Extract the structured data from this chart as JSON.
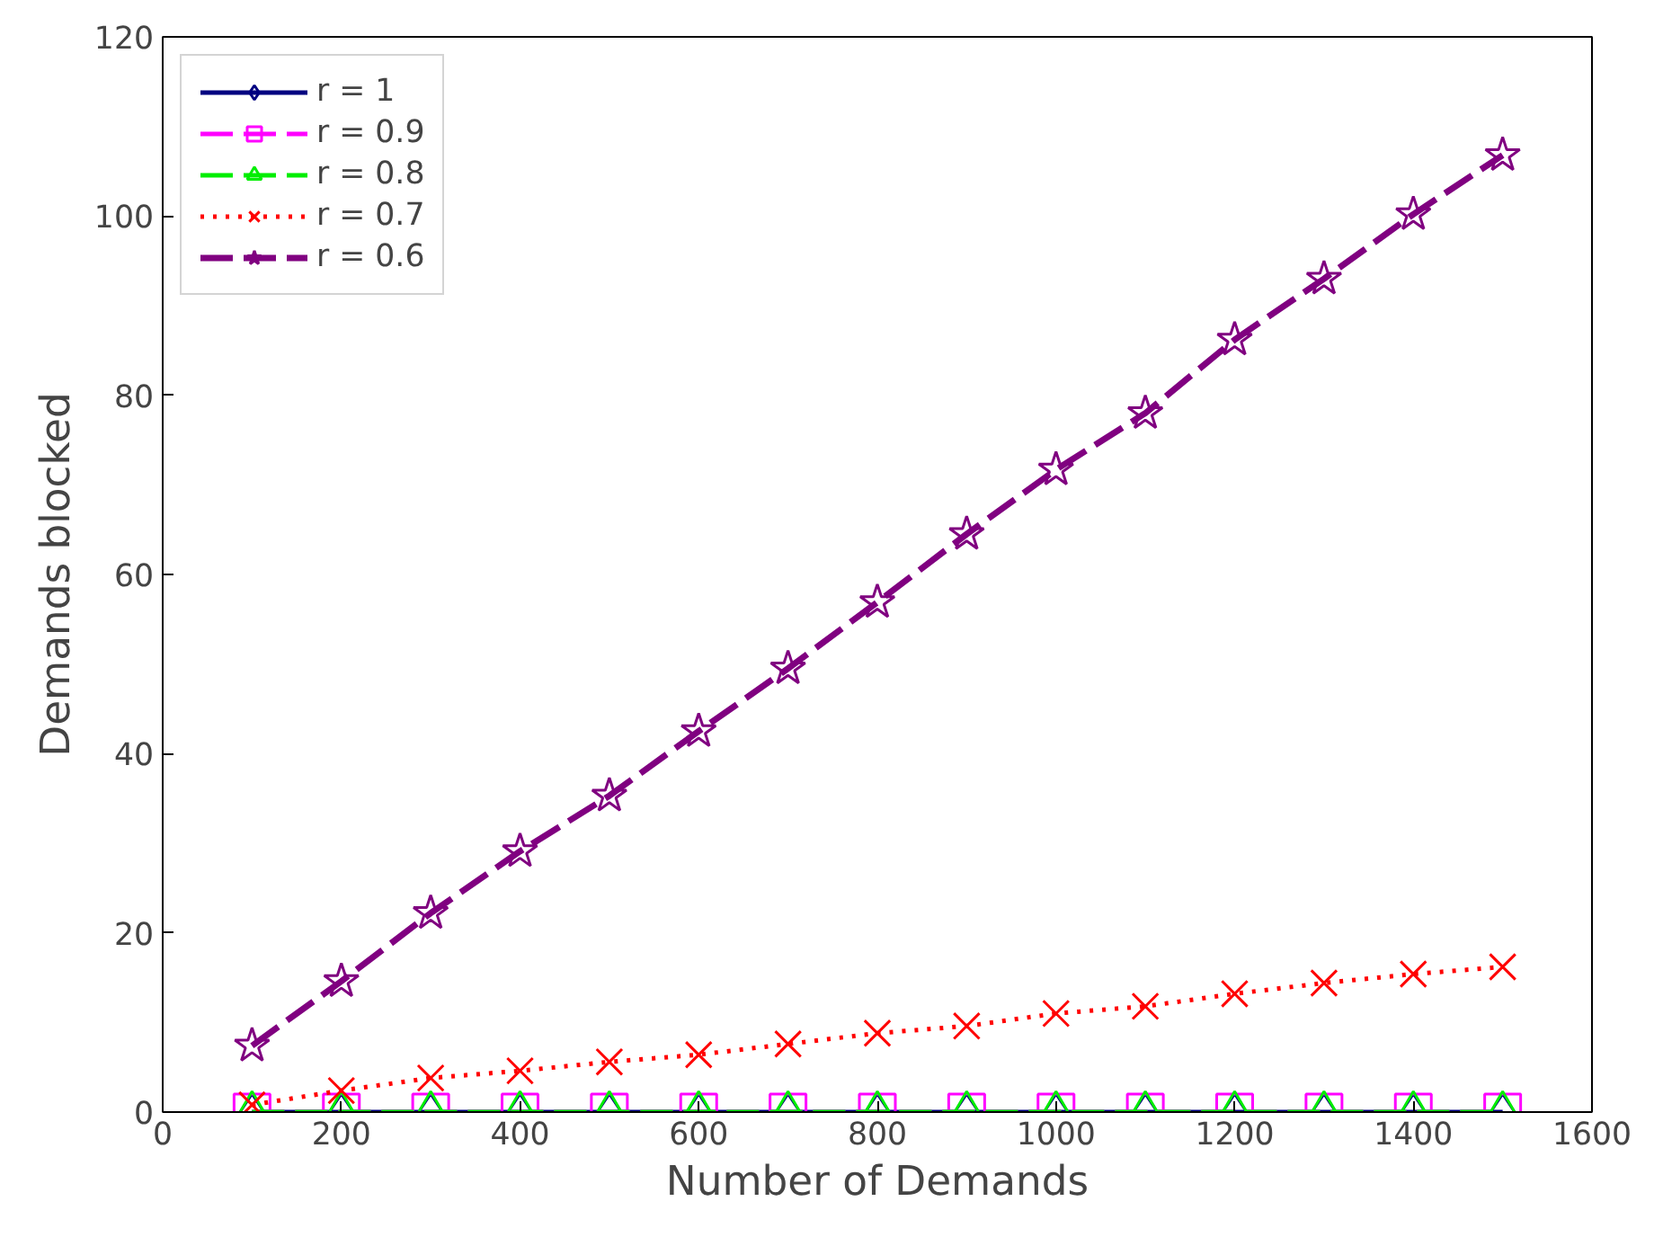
{
  "chart_data": {
    "type": "line",
    "xlabel": "Number of Demands",
    "ylabel": "Demands blocked",
    "x": [
      100,
      200,
      300,
      400,
      500,
      600,
      700,
      800,
      900,
      1000,
      1100,
      1200,
      1300,
      1400,
      1500
    ],
    "xlim": [
      0,
      1600
    ],
    "xticks": [
      0,
      200,
      400,
      600,
      800,
      1000,
      1200,
      1400,
      1600
    ],
    "ylim": [
      0,
      120
    ],
    "yticks": [
      0,
      20,
      40,
      60,
      80,
      100,
      120
    ],
    "grid": false,
    "legend": "top left",
    "series": [
      {
        "name": "r = 1",
        "color": "#000080",
        "marker": "diamond",
        "line_style": "solid",
        "values": [
          0,
          0,
          0,
          0,
          0,
          0,
          0,
          0,
          0,
          0,
          0,
          0,
          0,
          0,
          0
        ]
      },
      {
        "name": "r = 0.9",
        "color": "#ff00ff",
        "marker": "square",
        "line_style": "dashed",
        "values": [
          0,
          0,
          0,
          0,
          0,
          0,
          0,
          0,
          0,
          0,
          0,
          0,
          0,
          0,
          0
        ]
      },
      {
        "name": "r = 0.8",
        "color": "#00ee00",
        "marker": "triangle",
        "line_style": "dashed",
        "values": [
          0,
          0,
          0,
          0,
          0,
          0,
          0,
          0,
          0,
          0,
          0,
          0,
          0,
          0,
          0
        ]
      },
      {
        "name": "r = 0.7",
        "color": "#ff0000",
        "marker": "cross",
        "line_style": "dotted",
        "values": [
          0.8,
          2.4,
          3.8,
          4.6,
          5.6,
          6.4,
          7.6,
          8.8,
          9.6,
          11,
          11.8,
          13.2,
          14.4,
          15.4,
          16.2
        ]
      },
      {
        "name": "r = 0.6",
        "color": "#800080",
        "marker": "star",
        "line_style": "dashed",
        "values": [
          7.4,
          14.6,
          22.2,
          29.1,
          35.3,
          42.5,
          49.5,
          56.9,
          64.5,
          71.7,
          78.0,
          86.2,
          93.0,
          100.2,
          106.8
        ]
      }
    ]
  }
}
